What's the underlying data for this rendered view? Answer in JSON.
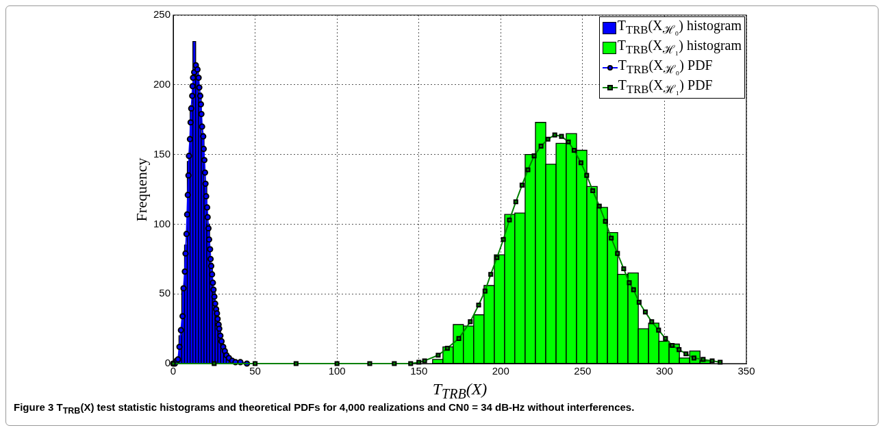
{
  "chart_data": {
    "type": "histogram",
    "xlabel": "T$_{TRB}$(X)",
    "ylabel": "Frequency",
    "annotations": [
      "Figure 3 T$_{TRB}$(X) test statistic histograms and theoretical PDFs for 4,000 realizations and CN0 = 34 dB-Hz without interferences."
    ],
    "xlim": [
      0,
      350
    ],
    "ylim": [
      0,
      250
    ],
    "xticks": [
      0,
      50,
      100,
      150,
      200,
      250,
      300,
      350
    ],
    "yticks": [
      0,
      50,
      100,
      150,
      200,
      250
    ],
    "grid": true,
    "legend": "top right",
    "series": [
      {
        "name": "T$_{TRB}$(X$_{ℋ₀}$) histogram",
        "color": "#0000ff",
        "bins": [
          1.8,
          3.5,
          5.2,
          6.9,
          8.6,
          10.3,
          12.0,
          13.7,
          15.4,
          17.1,
          18.8,
          20.5,
          22.2,
          23.9,
          25.6,
          27.3,
          29.0,
          30.7,
          32.4,
          34.1
        ],
        "values": [
          3,
          20,
          55,
          85,
          145,
          185,
          231,
          212,
          194,
          165,
          130,
          100,
          72,
          52,
          38,
          24,
          14,
          9,
          5
        ]
      },
      {
        "name": "T$_{TRB}$(X$_{ℋ₁}$) histogram",
        "color": "#00ff00",
        "bins": [
          158.4,
          164.7,
          171.0,
          177.2,
          183.5,
          189.8,
          196.1,
          202.4,
          208.6,
          214.9,
          221.2,
          227.5,
          233.8,
          240.0,
          246.3,
          252.6,
          258.9,
          265.2,
          271.4,
          277.7,
          284.0,
          290.3,
          296.6,
          302.8,
          309.1,
          315.4,
          321.7,
          328.0
        ],
        "values": [
          3,
          12,
          28,
          27,
          35,
          56,
          78,
          107,
          108,
          150,
          173,
          143,
          158,
          165,
          153,
          127,
          112,
          94,
          64,
          65,
          25,
          29,
          16,
          14,
          4,
          9,
          2
        ]
      },
      {
        "name": "T$_{TRB}$(X$_{ℋ₀}$) PDF",
        "type": "line",
        "color": "#0000ff",
        "marker": "circle",
        "line_style": "solid",
        "x": [
          0,
          1,
          2,
          2.9,
          3.8,
          4.7,
          5.7,
          6.3,
          7.1,
          7.5,
          8.1,
          8.5,
          8.9,
          9.3,
          9.6,
          10.2,
          10.6,
          11.0,
          11.6,
          11.8,
          12.1,
          12.8,
          13.8,
          14.8,
          15.5,
          15.9,
          16.5,
          16.9,
          17.2,
          17.6,
          18.3,
          18.6,
          19.0,
          19.4,
          19.7,
          20.1,
          20.7,
          21.0,
          21.5,
          21.9,
          22.5,
          22.8,
          23.2,
          23.7,
          24.2,
          24.6,
          25.1,
          25.6,
          26.2,
          26.7,
          27.1,
          27.7,
          28.1,
          28.8,
          29.5,
          30.5,
          31.5,
          32.5,
          34,
          36,
          38,
          41,
          45
        ],
        "values": [
          0,
          0,
          2,
          3,
          12,
          24,
          34,
          54,
          66,
          79,
          93,
          107,
          121,
          135,
          149,
          161,
          173,
          183,
          192,
          199,
          205,
          209,
          214,
          211,
          205,
          198,
          192,
          186,
          179,
          170,
          163,
          154,
          146,
          137,
          129,
          120,
          112,
          105,
          97,
          89,
          82,
          75,
          70,
          64,
          58,
          53,
          48,
          43,
          39,
          36,
          32,
          28,
          25,
          20,
          16,
          12,
          9,
          6,
          4,
          2,
          1,
          1,
          0
        ]
      },
      {
        "name": "T$_{TRB}$(X$_{ℋ₁}$) PDF",
        "type": "line",
        "color": "#008000",
        "marker": "square",
        "line_style": "solid",
        "x": [
          0,
          25,
          50,
          75,
          100,
          120,
          135,
          145,
          150,
          153.5,
          161.8,
          167.4,
          174.4,
          181.4,
          186.5,
          190.4,
          193.9,
          197.7,
          201.6,
          205.3,
          209.2,
          213,
          216.6,
          220.4,
          224.6,
          228.8,
          233,
          237.1,
          241.3,
          244.8,
          249,
          252.5,
          256.2,
          260.2,
          263.9,
          267.5,
          271.3,
          275.1,
          278.5,
          281.1,
          284.5,
          288.3,
          292.2,
          296.4,
          300.6,
          304.7,
          308.9,
          313.1,
          318,
          323.6,
          329.1,
          334
        ],
        "values": [
          0,
          0,
          0,
          0,
          0,
          0,
          0,
          0,
          1,
          2,
          6,
          11,
          18,
          30,
          42,
          52,
          64,
          76,
          89,
          103,
          116,
          128,
          139,
          149,
          156,
          161,
          164,
          163,
          159,
          153,
          144,
          135,
          124,
          113,
          102,
          90,
          79,
          68,
          58,
          53,
          44,
          37,
          30,
          24,
          18,
          13,
          10,
          7,
          4,
          3,
          2,
          1
        ]
      }
    ]
  }
}
